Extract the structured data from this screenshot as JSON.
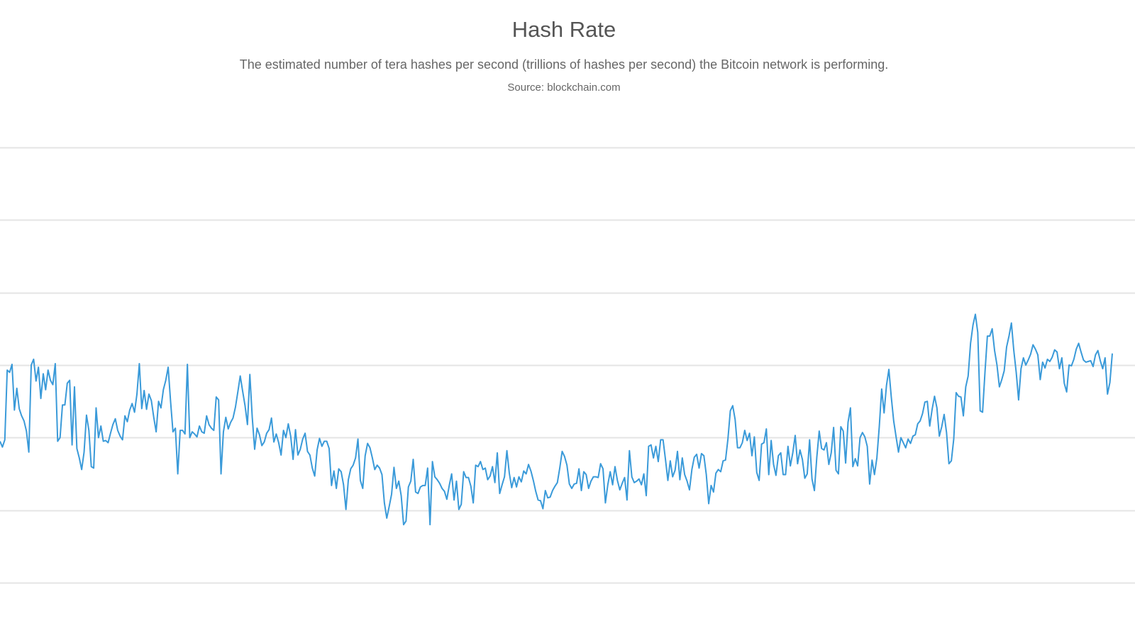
{
  "chart_data": {
    "type": "line",
    "title": "Hash Rate",
    "subtitle": "The estimated number of tera hashes per second (trillions of hashes per second) the Bitcoin network is performing.",
    "source": "Source: blockchain.com",
    "xlabel": "",
    "ylabel": "",
    "grid": true,
    "legend": "none",
    "ylim": [
      0,
      6
    ],
    "gridlines": [
      0,
      1,
      2,
      3,
      4,
      5,
      6
    ],
    "line_color": "#3a9ad9",
    "series": [
      {
        "values": [
          1.95,
          1.87,
          1.97,
          2.93,
          2.9,
          3.01,
          2.38,
          2.68,
          2.4,
          2.3,
          2.23,
          2.09,
          1.8,
          3.0,
          3.08,
          2.78,
          2.97,
          2.54,
          2.88,
          2.66,
          2.93,
          2.79,
          2.73,
          3.02,
          1.95,
          2.0,
          2.45,
          2.45,
          2.75,
          2.79,
          1.9,
          2.7,
          1.85,
          1.72,
          1.56,
          1.8,
          2.31,
          2.1,
          1.6,
          1.58,
          2.41,
          2.0,
          2.16,
          1.95,
          1.96,
          1.93,
          2.06,
          2.18,
          2.26,
          2.1,
          2.02,
          1.97,
          2.3,
          2.22,
          2.38,
          2.47,
          2.35,
          2.6,
          3.02,
          2.4,
          2.65,
          2.39,
          2.6,
          2.51,
          2.28,
          2.08,
          2.5,
          2.41,
          2.66,
          2.79,
          2.97,
          2.5,
          2.08,
          2.13,
          1.5,
          2.1,
          2.1,
          2.05,
          3.01,
          2.0,
          2.08,
          2.05,
          2.01,
          2.16,
          2.08,
          2.06,
          2.3,
          2.18,
          2.13,
          2.1,
          2.56,
          2.52,
          1.5,
          2.08,
          2.28,
          2.12,
          2.21,
          2.27,
          2.42,
          2.63,
          2.85,
          2.64,
          2.44,
          2.18,
          2.87,
          2.28,
          1.84,
          2.13,
          2.04,
          1.89,
          1.94,
          2.06,
          2.11,
          2.27,
          1.94,
          2.05,
          1.93,
          1.76,
          2.1,
          2.0,
          2.19,
          2.02,
          1.7,
          2.11,
          1.76,
          1.84,
          1.98,
          2.06,
          1.81,
          1.76,
          1.58,
          1.47,
          1.83,
          1.99,
          1.88,
          1.95,
          1.95,
          1.85,
          1.34,
          1.54,
          1.3,
          1.57,
          1.53,
          1.35,
          1.01,
          1.42,
          1.57,
          1.62,
          1.72,
          1.98,
          1.41,
          1.3,
          1.75,
          1.92,
          1.86,
          1.72,
          1.56,
          1.62,
          1.58,
          1.49,
          1.1,
          0.89,
          1.05,
          1.22,
          1.59,
          1.3,
          1.4,
          1.2,
          0.8,
          0.85,
          1.32,
          1.4,
          1.7,
          1.25,
          1.23,
          1.32,
          1.34,
          1.34,
          1.58,
          0.8,
          1.67,
          1.46,
          1.42,
          1.37,
          1.3,
          1.26,
          1.15,
          1.34,
          1.5,
          1.14,
          1.4,
          1.01,
          1.08,
          1.53,
          1.45,
          1.45,
          1.33,
          1.1,
          1.62,
          1.6,
          1.67,
          1.56,
          1.58,
          1.42,
          1.47,
          1.6,
          1.38,
          1.79,
          1.23,
          1.35,
          1.46,
          1.82,
          1.51,
          1.31,
          1.45,
          1.32,
          1.46,
          1.39,
          1.54,
          1.5,
          1.63,
          1.54,
          1.41,
          1.26,
          1.14,
          1.13,
          1.02,
          1.27,
          1.17,
          1.18,
          1.27,
          1.33,
          1.38,
          1.58,
          1.81,
          1.74,
          1.62,
          1.36,
          1.3,
          1.36,
          1.37,
          1.57,
          1.27,
          1.53,
          1.49,
          1.3,
          1.4,
          1.46,
          1.46,
          1.45,
          1.64,
          1.57,
          1.1,
          1.35,
          1.53,
          1.35,
          1.6,
          1.41,
          1.28,
          1.37,
          1.45,
          1.14,
          1.82,
          1.46,
          1.38,
          1.4,
          1.43,
          1.35,
          1.5,
          1.2,
          1.88,
          1.9,
          1.72,
          1.88,
          1.67,
          1.97,
          1.97,
          1.7,
          1.41,
          1.68,
          1.46,
          1.55,
          1.81,
          1.42,
          1.72,
          1.49,
          1.4,
          1.28,
          1.56,
          1.73,
          1.77,
          1.58,
          1.78,
          1.75,
          1.49,
          1.09,
          1.34,
          1.25,
          1.51,
          1.56,
          1.53,
          1.68,
          1.69,
          1.98,
          2.37,
          2.44,
          2.25,
          1.86,
          1.86,
          1.93,
          2.1,
          1.96,
          2.06,
          1.75,
          2.01,
          1.52,
          1.41,
          1.91,
          1.93,
          2.12,
          1.49,
          1.96,
          1.63,
          1.48,
          1.75,
          1.79,
          1.49,
          1.49,
          1.88,
          1.61,
          1.79,
          2.03,
          1.64,
          1.83,
          1.7,
          1.44,
          1.5,
          1.97,
          1.43,
          1.27,
          1.73,
          2.09,
          1.85,
          1.83,
          1.93,
          1.63,
          1.79,
          2.14,
          1.55,
          1.5,
          2.15,
          2.09,
          1.65,
          2.21,
          2.41,
          1.6,
          1.71,
          1.61,
          2.0,
          2.07,
          2.01,
          1.88,
          1.36,
          1.69,
          1.49,
          1.72,
          2.15,
          2.67,
          2.34,
          2.72,
          2.94,
          2.56,
          2.23,
          2.01,
          1.8,
          2.0,
          1.93,
          1.86,
          1.98,
          1.92,
          2.02,
          2.04,
          2.19,
          2.23,
          2.33,
          2.49,
          2.5,
          2.16,
          2.39,
          2.57,
          2.41,
          2.02,
          2.15,
          2.32,
          2.07,
          1.64,
          1.68,
          1.98,
          2.62,
          2.57,
          2.56,
          2.3,
          2.7,
          2.85,
          3.3,
          3.55,
          3.7,
          3.45,
          2.37,
          2.35,
          2.9,
          3.4,
          3.4,
          3.5,
          3.2,
          3.0,
          2.7,
          2.8,
          2.92,
          3.25,
          3.4,
          3.58,
          3.2,
          2.9,
          2.52,
          2.95,
          3.1,
          3.0,
          3.07,
          3.15,
          3.28,
          3.22,
          3.14,
          2.8,
          3.04,
          2.96,
          3.08,
          3.05,
          3.11,
          3.21,
          3.18,
          2.95,
          3.1,
          2.75,
          2.63,
          3.0,
          2.99,
          3.08,
          3.22,
          3.3,
          3.18,
          3.07,
          3.04,
          3.05,
          3.06,
          2.98,
          3.14,
          3.2,
          3.06,
          2.95,
          3.1,
          2.6,
          2.76,
          3.16
        ]
      }
    ]
  }
}
